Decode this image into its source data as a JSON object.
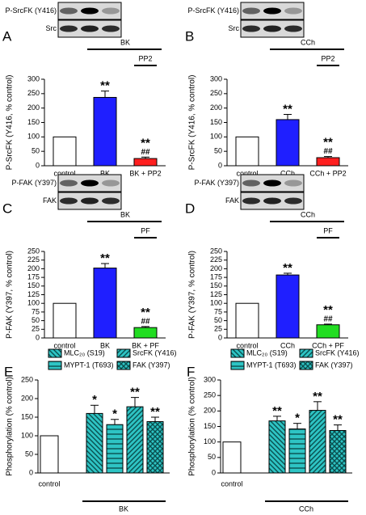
{
  "chart_data": [
    {
      "type": "bar",
      "panel": "A",
      "blot_labels": [
        "P-SrcFK (Y416)",
        "Src"
      ],
      "treatments": [
        "BK",
        "PP2"
      ],
      "ylabel": "P-SrcFK (Y416, % control)",
      "categories": [
        "control",
        "BK",
        "BK + PP2"
      ],
      "values": [
        100,
        237,
        25
      ],
      "errors": [
        null,
        22,
        5
      ],
      "colors": [
        "#ffffff",
        "#1f1fff",
        "#ff1f1f"
      ],
      "annotations": [
        null,
        [
          "**"
        ],
        [
          "**",
          "##"
        ]
      ],
      "ylim": [
        0,
        300
      ],
      "yticks": [
        0,
        50,
        100,
        150,
        200,
        250,
        300
      ]
    },
    {
      "type": "bar",
      "panel": "B",
      "blot_labels": [
        "P-SrcFK (Y416)",
        "Src"
      ],
      "treatments": [
        "CCh",
        "PP2"
      ],
      "ylabel": "P-SrcFK (Y416, % control)",
      "categories": [
        "control",
        "CCh",
        "CCh + PP2"
      ],
      "values": [
        100,
        160,
        28
      ],
      "errors": [
        null,
        18,
        4
      ],
      "colors": [
        "#ffffff",
        "#1f1fff",
        "#ff1f1f"
      ],
      "annotations": [
        null,
        [
          "**"
        ],
        [
          "**",
          "##"
        ]
      ],
      "ylim": [
        0,
        300
      ],
      "yticks": [
        0,
        50,
        100,
        150,
        200,
        250,
        300
      ]
    },
    {
      "type": "bar",
      "panel": "C",
      "blot_labels": [
        "P-FAK (Y397)",
        "FAK"
      ],
      "treatments": [
        "BK",
        "PF"
      ],
      "ylabel": "P-FAK (Y397, % control)",
      "categories": [
        "control",
        "BK",
        "BK + PF"
      ],
      "values": [
        100,
        202,
        30
      ],
      "errors": [
        null,
        13,
        3
      ],
      "colors": [
        "#ffffff",
        "#1f1fff",
        "#22dd22"
      ],
      "annotations": [
        null,
        [
          "**"
        ],
        [
          "**",
          "##"
        ]
      ],
      "ylim": [
        0,
        250
      ],
      "yticks": [
        0,
        25,
        50,
        75,
        100,
        125,
        150,
        175,
        200,
        225,
        250
      ]
    },
    {
      "type": "bar",
      "panel": "D",
      "blot_labels": [
        "P-FAK (Y397)",
        "FAK"
      ],
      "treatments": [
        "CCh",
        "PF"
      ],
      "ylabel": "P-FAK (Y397, % control)",
      "categories": [
        "control",
        "CCh",
        "CCh + PF"
      ],
      "values": [
        100,
        182,
        38
      ],
      "errors": [
        null,
        5,
        2
      ],
      "colors": [
        "#ffffff",
        "#1f1fff",
        "#22dd22"
      ],
      "annotations": [
        null,
        [
          "**"
        ],
        [
          "**",
          "##"
        ]
      ],
      "ylim": [
        0,
        250
      ],
      "yticks": [
        0,
        25,
        50,
        75,
        100,
        125,
        150,
        175,
        200,
        225,
        250
      ]
    },
    {
      "type": "grouped_bar",
      "panel": "E",
      "ylabel": "Phosphorylation (% control)",
      "control": {
        "label": "control",
        "value": 100
      },
      "group": "BK",
      "series": [
        {
          "name": "MLC₂₀ (S19)",
          "color": "#2ec4c4",
          "pattern": "diagonal",
          "value": 160,
          "error": 22,
          "annotation": "*"
        },
        {
          "name": "MYPT-1 (T693)",
          "color": "#2ec4c4",
          "pattern": "horizontal",
          "value": 130,
          "error": 14,
          "annotation": "*"
        },
        {
          "name": "SrcFK (Y416)",
          "color": "#2ec4c4",
          "pattern": "backdiagonal",
          "value": 178,
          "error": 25,
          "annotation": "**"
        },
        {
          "name": "FAK (Y397)",
          "color": "#2ec4c4",
          "pattern": "cross",
          "value": 138,
          "error": 12,
          "annotation": "**"
        }
      ],
      "ylim": [
        0,
        250
      ],
      "yticks": [
        0,
        50,
        100,
        150,
        200,
        250
      ]
    },
    {
      "type": "grouped_bar",
      "panel": "F",
      "ylabel": "Phosphorylation (% control)",
      "control": {
        "label": "control",
        "value": 100
      },
      "group": "CCh",
      "series": [
        {
          "name": "MLC₂₀ (S19)",
          "color": "#2ec4c4",
          "pattern": "diagonal",
          "value": 168,
          "error": 15,
          "annotation": "**"
        },
        {
          "name": "MYPT-1 (T693)",
          "color": "#2ec4c4",
          "pattern": "horizontal",
          "value": 142,
          "error": 18,
          "annotation": "*"
        },
        {
          "name": "SrcFK (Y416)",
          "color": "#2ec4c4",
          "pattern": "backdiagonal",
          "value": 202,
          "error": 28,
          "annotation": "**"
        },
        {
          "name": "FAK (Y397)",
          "color": "#2ec4c4",
          "pattern": "cross",
          "value": 137,
          "error": 18,
          "annotation": "**"
        }
      ],
      "ylim": [
        0,
        300
      ],
      "yticks": [
        0,
        50,
        100,
        150,
        200,
        250,
        300
      ]
    }
  ]
}
